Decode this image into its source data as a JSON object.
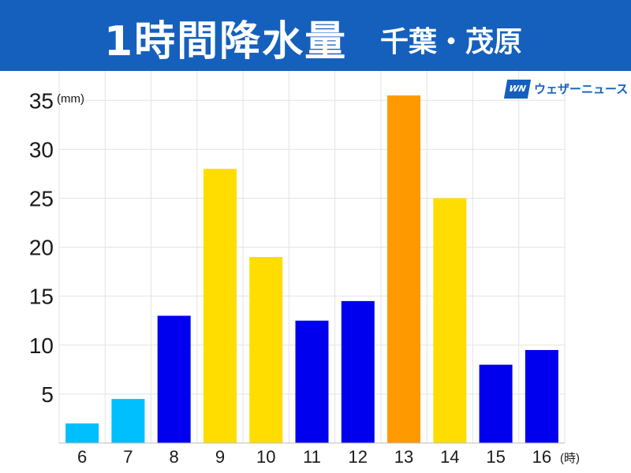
{
  "header": {
    "title": "1時間降水量",
    "location": "千葉・茂原",
    "background_color": "#1560bd"
  },
  "logo": {
    "badge": "WN",
    "brand": "ウェザーニュース"
  },
  "chart_data": {
    "type": "bar",
    "categories": [
      "6",
      "7",
      "8",
      "9",
      "10",
      "11",
      "12",
      "13",
      "14",
      "15",
      "16"
    ],
    "values": [
      2.0,
      4.5,
      13.0,
      28.0,
      19.0,
      12.5,
      14.5,
      35.5,
      25.0,
      8.0,
      9.5
    ],
    "colors": [
      "#00bfff",
      "#00bfff",
      "#0000ee",
      "#ffdd00",
      "#ffdd00",
      "#0000ee",
      "#0000ee",
      "#ff9900",
      "#ffdd00",
      "#0000ee",
      "#0000ee"
    ],
    "title": "1時間降水量",
    "subtitle": "千葉・茂原",
    "ylabel": "(mm)",
    "xlabel": "(時)",
    "ylim": [
      0,
      38
    ],
    "yticks": [
      5,
      10,
      15,
      20,
      25,
      30,
      35
    ],
    "grid": true
  }
}
